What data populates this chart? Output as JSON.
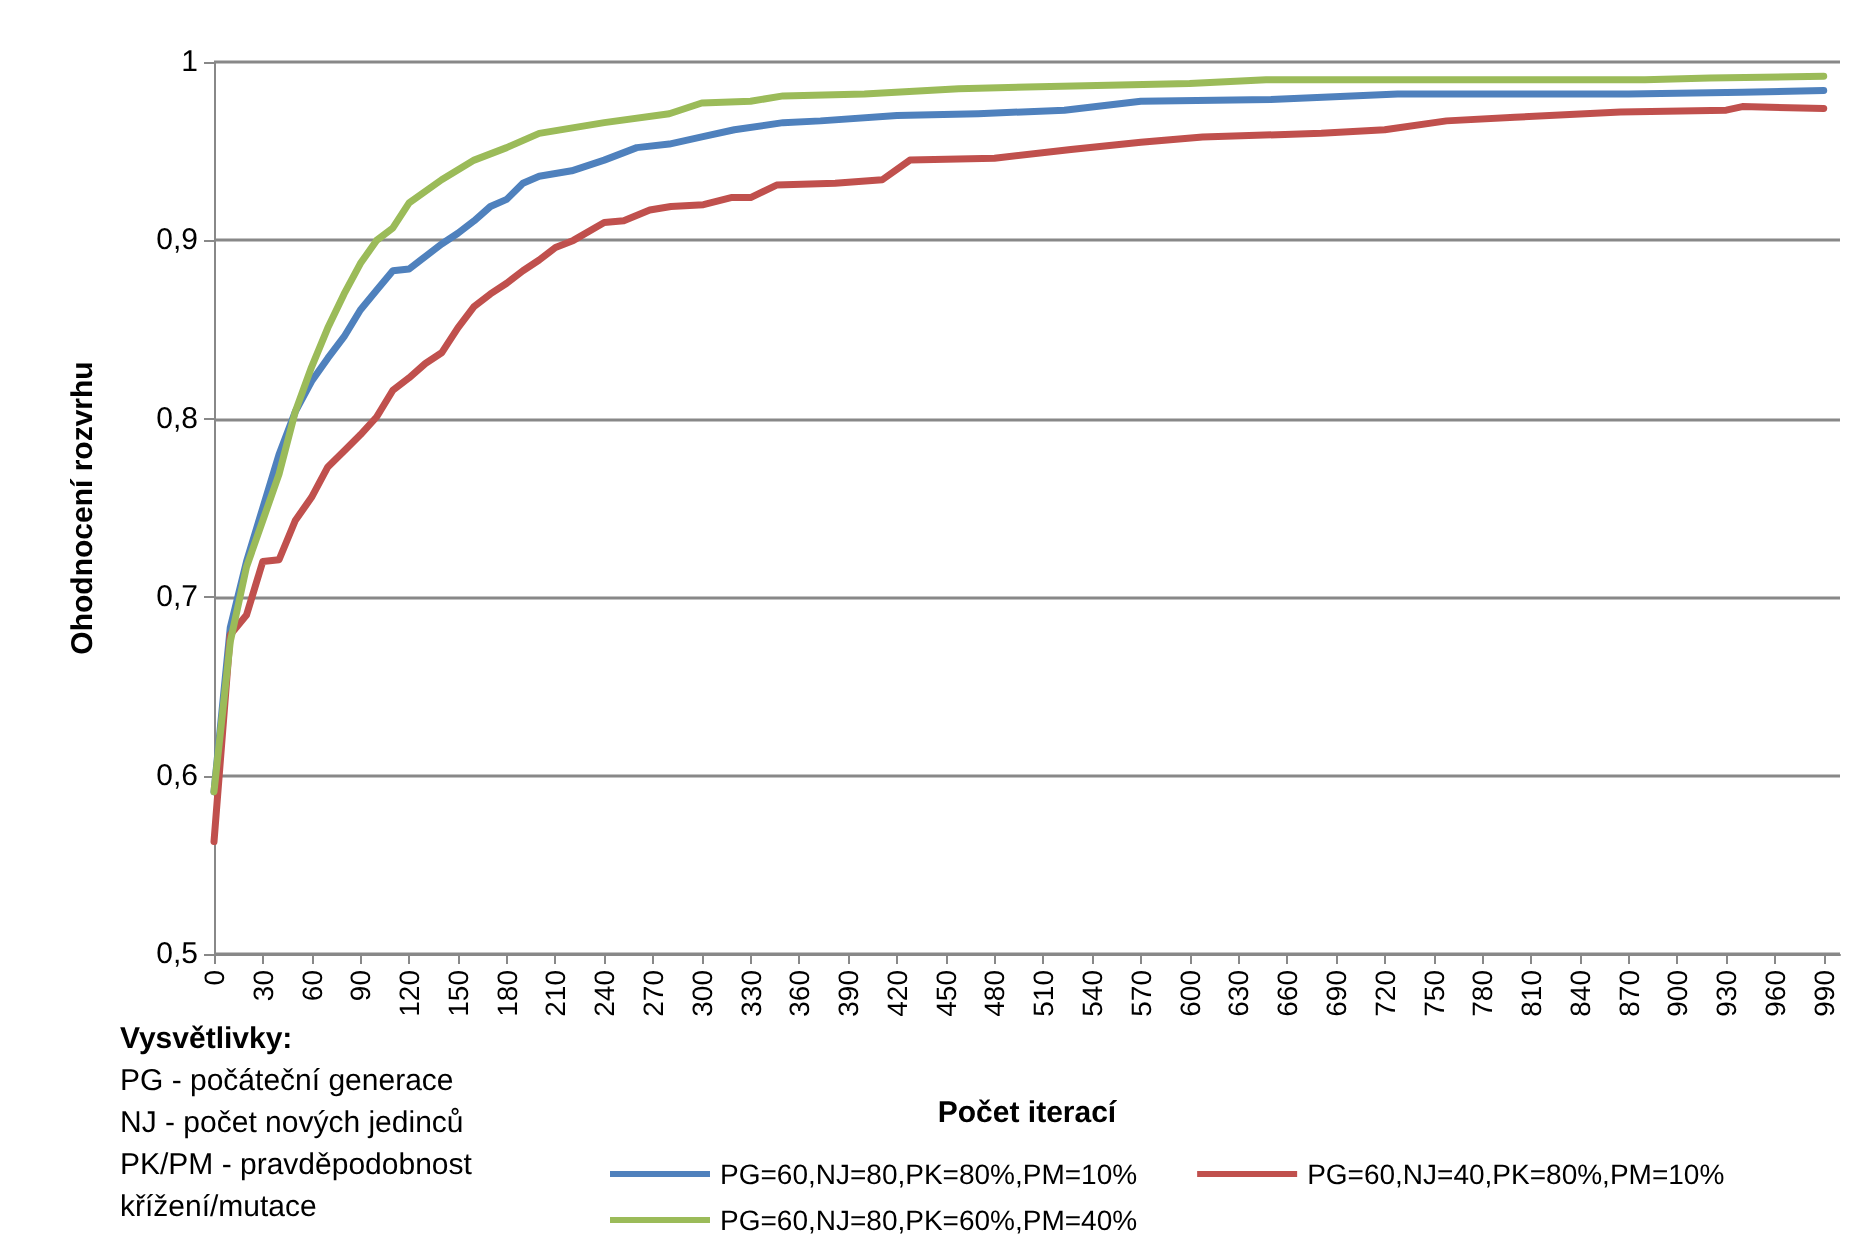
{
  "chart_data": {
    "type": "line",
    "xlabel": "Počet iterací",
    "ylabel": "Ohodnocení rozvrhu",
    "xlim": [
      0,
      1000
    ],
    "xticks": [
      0,
      30,
      60,
      90,
      120,
      150,
      180,
      210,
      240,
      270,
      300,
      330,
      360,
      390,
      420,
      450,
      480,
      510,
      540,
      570,
      600,
      630,
      660,
      690,
      720,
      750,
      780,
      810,
      840,
      870,
      900,
      930,
      960,
      990
    ],
    "ylim": [
      0.5,
      1
    ],
    "yticks": [
      {
        "value": 0.5,
        "label": "0,5"
      },
      {
        "value": 0.6,
        "label": "0,6"
      },
      {
        "value": 0.7,
        "label": "0,7"
      },
      {
        "value": 0.8,
        "label": "0,8"
      },
      {
        "value": 0.9,
        "label": "0,9"
      },
      {
        "value": 1,
        "label": "1"
      }
    ],
    "grid": "y",
    "legend": "bottom",
    "marker": "none",
    "line_style": "solid",
    "series": [
      {
        "name": "PG=60,NJ=80,PK=80%,PM=10%",
        "color": "#4f81bd",
        "x": [
          0,
          10,
          20,
          30,
          40,
          50,
          60,
          70,
          80,
          90,
          100,
          110,
          120,
          130,
          140,
          150,
          160,
          170,
          180,
          190,
          200,
          220,
          240,
          260,
          280,
          300,
          320,
          350,
          373,
          420,
          470,
          523,
          570,
          650,
          728,
          800,
          870,
          940,
          990
        ],
        "values": [
          0.591,
          0.683,
          0.72,
          0.75,
          0.78,
          0.804,
          0.821,
          0.834,
          0.846,
          0.861,
          0.872,
          0.883,
          0.884,
          0.891,
          0.898,
          0.904,
          0.911,
          0.919,
          0.923,
          0.932,
          0.936,
          0.939,
          0.945,
          0.952,
          0.954,
          0.958,
          0.962,
          0.966,
          0.967,
          0.97,
          0.971,
          0.973,
          0.978,
          0.979,
          0.982,
          0.982,
          0.982,
          0.983,
          0.984
        ]
      },
      {
        "name": "PG=60,NJ=40,PK=80%,PM=10%",
        "color": "#c0504d",
        "x": [
          0,
          10,
          20,
          30,
          40,
          50,
          60,
          70,
          80,
          90,
          100,
          110,
          120,
          130,
          140,
          150,
          160,
          170,
          180,
          190,
          200,
          210,
          221,
          240,
          252,
          268,
          281,
          301,
          318,
          330,
          346,
          382,
          411,
          428,
          480,
          527,
          570,
          608,
          681,
          720,
          758,
          800,
          865,
          930,
          940,
          990
        ],
        "values": [
          0.563,
          0.679,
          0.69,
          0.72,
          0.721,
          0.743,
          0.756,
          0.773,
          0.782,
          0.791,
          0.801,
          0.816,
          0.823,
          0.831,
          0.837,
          0.851,
          0.863,
          0.87,
          0.876,
          0.883,
          0.889,
          0.896,
          0.9,
          0.91,
          0.911,
          0.917,
          0.919,
          0.92,
          0.924,
          0.924,
          0.931,
          0.932,
          0.934,
          0.945,
          0.946,
          0.951,
          0.955,
          0.958,
          0.96,
          0.962,
          0.967,
          0.969,
          0.972,
          0.973,
          0.975,
          0.974
        ]
      },
      {
        "name": "PG=60,NJ=80,PK=60%,PM=40%",
        "color": "#9bbb59",
        "x": [
          0,
          10,
          20,
          30,
          40,
          50,
          60,
          70,
          80,
          90,
          100,
          110,
          120,
          140,
          160,
          180,
          200,
          240,
          280,
          300,
          330,
          350,
          400,
          458,
          500,
          550,
          600,
          647,
          700,
          800,
          880,
          920,
          990
        ],
        "values": [
          0.591,
          0.675,
          0.717,
          0.743,
          0.769,
          0.804,
          0.829,
          0.851,
          0.87,
          0.887,
          0.9,
          0.907,
          0.921,
          0.934,
          0.945,
          0.952,
          0.96,
          0.966,
          0.971,
          0.977,
          0.978,
          0.981,
          0.982,
          0.985,
          0.986,
          0.987,
          0.988,
          0.99,
          0.99,
          0.99,
          0.99,
          0.991,
          0.992
        ]
      }
    ],
    "annotations": [
      "Vysvětlivky:",
      "PG - počáteční generace",
      "NJ - počet nových jedinců",
      "PK/PM - pravděpodobnost",
      "křížení/mutace"
    ]
  }
}
